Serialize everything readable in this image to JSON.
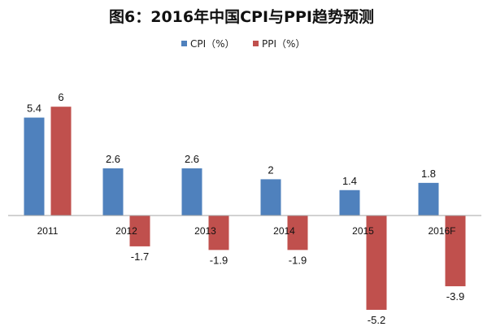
{
  "chart_data": {
    "type": "bar",
    "title": "图6：2016年中国CPI与PPI趋势预测",
    "categories": [
      "2011",
      "2012",
      "2013",
      "2014",
      "2015",
      "2016F"
    ],
    "series": [
      {
        "name": "CPI（%）",
        "color": "#4f81bd",
        "values": [
          5.4,
          2.6,
          2.6,
          2,
          1.4,
          1.8
        ]
      },
      {
        "name": "PPI（%）",
        "color": "#c0504d",
        "values": [
          6,
          -1.7,
          -1.9,
          -1.9,
          -5.2,
          -3.9
        ]
      }
    ],
    "legend_position": "top-center",
    "grid": false
  }
}
